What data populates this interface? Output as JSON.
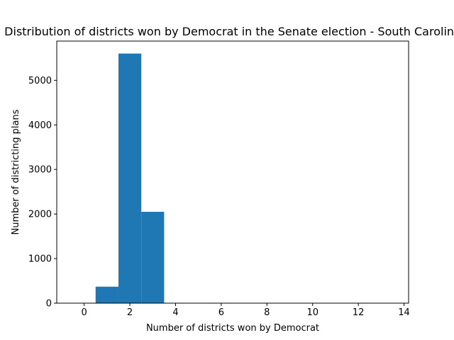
{
  "chart_data": {
    "type": "bar",
    "title": "Distribution of districts won by Democrat in the Senate election - South Carolina",
    "xlabel": "Number of districts won by Democrat",
    "ylabel": "Number of districting plans",
    "xlim": [
      -1.2,
      14.2
    ],
    "ylim": [
      0,
      5880
    ],
    "xticks": [
      0,
      2,
      4,
      6,
      8,
      10,
      12,
      14
    ],
    "yticks": [
      0,
      1000,
      2000,
      3000,
      4000,
      5000
    ],
    "bin_width": 1,
    "bins": [
      {
        "x": 1,
        "value": 370
      },
      {
        "x": 2,
        "value": 5600
      },
      {
        "x": 3,
        "value": 2050
      }
    ],
    "bar_color": "#1f77b4",
    "grid": false,
    "legend": "none"
  }
}
